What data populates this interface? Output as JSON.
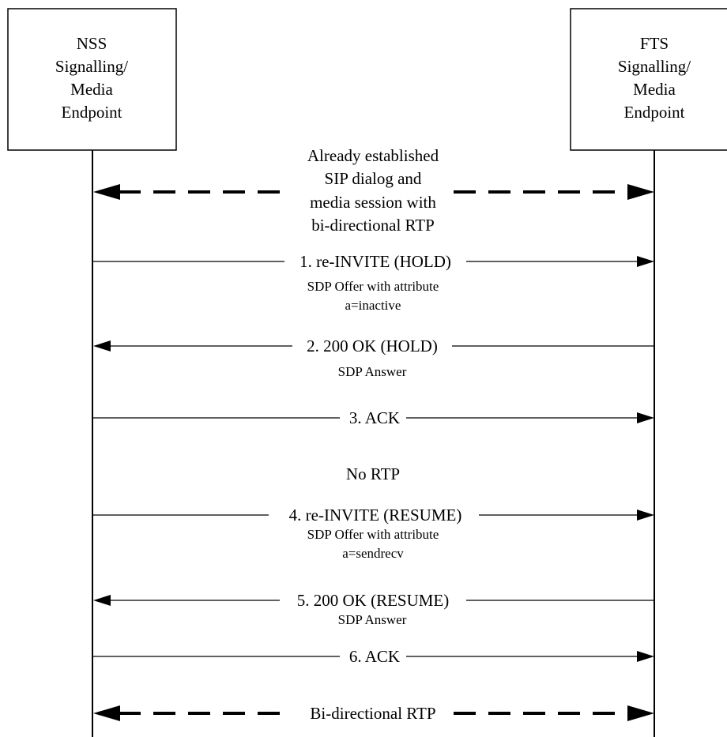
{
  "participants": {
    "left": {
      "lines": [
        "NSS",
        "Signalling/",
        "Media",
        "Endpoint"
      ]
    },
    "right": {
      "lines": [
        "FTS",
        "Signalling/",
        "Media",
        "Endpoint"
      ]
    }
  },
  "established": {
    "lines": [
      "Already established",
      "SIP dialog and",
      "media session with",
      "bi-directional RTP"
    ]
  },
  "messages": [
    {
      "label": "1. re-INVITE (HOLD)",
      "direction": "right",
      "sub": [
        "SDP Offer with attribute",
        "a=inactive"
      ]
    },
    {
      "label": "2. 200 OK (HOLD)",
      "direction": "left",
      "sub": [
        "SDP Answer"
      ]
    },
    {
      "label": "3. ACK",
      "direction": "right",
      "sub": []
    },
    {
      "label": "4. re-INVITE (RESUME)",
      "direction": "right",
      "sub": [
        "SDP Offer with attribute",
        "a=sendrecv"
      ]
    },
    {
      "label": "5. 200 OK (RESUME)",
      "direction": "left",
      "sub": [
        "SDP Answer"
      ]
    },
    {
      "label": "6. ACK",
      "direction": "right",
      "sub": []
    }
  ],
  "no_rtp": "No RTP",
  "final_rtp": "Bi-directional RTP"
}
